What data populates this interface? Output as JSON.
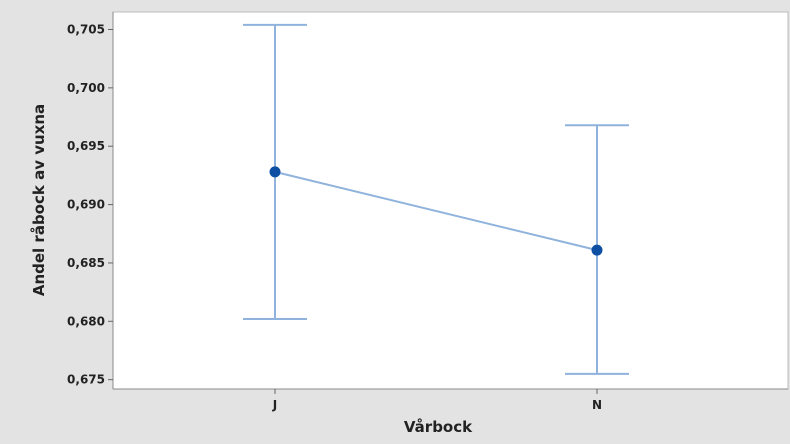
{
  "chart_data": {
    "type": "interval",
    "xlabel": "Vårbock",
    "ylabel": "Andel råbock av vuxna",
    "categories": [
      "J",
      "N"
    ],
    "means": [
      0.6928,
      0.6861
    ],
    "lower": [
      0.6802,
      0.6755
    ],
    "upper": [
      0.7054,
      0.6968
    ],
    "ylim": [
      0.6742,
      0.7065
    ],
    "yticks": [
      0.675,
      0.68,
      0.685,
      0.69,
      0.695,
      0.7,
      0.705
    ],
    "ytick_labels": [
      "0,675",
      "0,680",
      "0,685",
      "0,690",
      "0,695",
      "0,700",
      "0,705"
    ],
    "grid": false,
    "colors": {
      "background": "#e3e3e3",
      "plot_area": "#ffffff",
      "line": "#8fb3dd",
      "point": "#0e4fa3"
    }
  }
}
